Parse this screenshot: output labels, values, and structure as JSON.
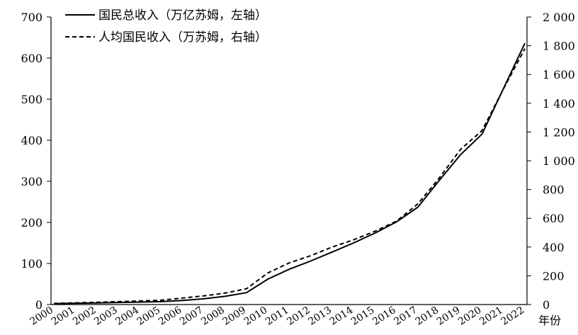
{
  "chart_data": {
    "type": "line",
    "x": [
      "2000",
      "2001",
      "2002",
      "2003",
      "2004",
      "2005",
      "2006",
      "2007",
      "2008",
      "2009",
      "2010",
      "2011",
      "2012",
      "2013",
      "2014",
      "2015",
      "2016",
      "2017",
      "2018",
      "2019",
      "2020",
      "2021",
      "2022"
    ],
    "xlabel": "年份",
    "series": [
      {
        "name": "国民总收入（万亿苏姆，左轴）",
        "axis": "left",
        "style": "solid",
        "values": [
          2,
          3,
          4,
          5,
          6,
          7,
          10,
          14,
          20,
          29,
          62,
          86,
          106,
          128,
          150,
          174,
          201,
          237,
          302,
          365,
          415,
          526,
          636
        ]
      },
      {
        "name": "人均国民收入（万苏姆，右轴）",
        "axis": "right",
        "style": "dashed",
        "values": [
          8,
          12,
          16,
          20,
          25,
          30,
          45,
          60,
          80,
          110,
          220,
          290,
          340,
          400,
          450,
          510,
          580,
          700,
          880,
          1080,
          1210,
          1500,
          1780
        ]
      }
    ],
    "left_axis": {
      "ylim": [
        0,
        700
      ],
      "ticks": [
        "0",
        "100",
        "200",
        "300",
        "400",
        "500",
        "600",
        "700"
      ]
    },
    "right_axis": {
      "ylim": [
        0,
        2000
      ],
      "ticks": [
        "0",
        "200",
        "400",
        "600",
        "800",
        "1 000",
        "1 200",
        "1 400",
        "1 600",
        "1 800",
        "2 000"
      ]
    },
    "legend_position": "top-left",
    "grid": false
  }
}
